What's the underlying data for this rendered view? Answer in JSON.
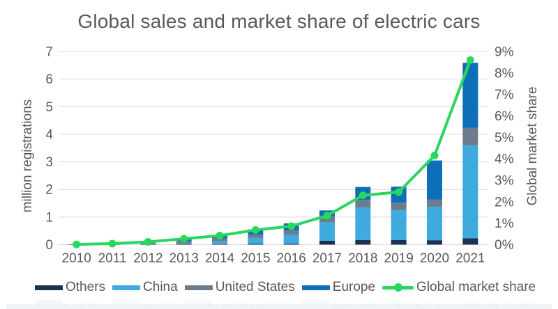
{
  "title": "Global sales and market share of electric cars",
  "chart_data": {
    "type": "combo",
    "x": [
      "2010",
      "2011",
      "2012",
      "2013",
      "2014",
      "2015",
      "2016",
      "2017",
      "2018",
      "2019",
      "2020",
      "2021"
    ],
    "bar_series": [
      {
        "name": "Others",
        "color": "#1d3154",
        "values": [
          0.005,
          0.01,
          0.01,
          0.02,
          0.02,
          0.03,
          0.03,
          0.14,
          0.17,
          0.17,
          0.16,
          0.23
        ]
      },
      {
        "name": "China",
        "color": "#3eaadd",
        "values": [
          0.0,
          0.01,
          0.02,
          0.03,
          0.1,
          0.22,
          0.33,
          0.67,
          1.18,
          1.08,
          1.21,
          3.37
        ]
      },
      {
        "name": "United States",
        "color": "#6d7c8b",
        "values": [
          0.0,
          0.02,
          0.05,
          0.08,
          0.12,
          0.11,
          0.15,
          0.22,
          0.27,
          0.27,
          0.26,
          0.63
        ]
      },
      {
        "name": "Europe",
        "color": "#0d6fb8",
        "values": [
          0.0,
          0.01,
          0.04,
          0.06,
          0.11,
          0.19,
          0.26,
          0.21,
          0.47,
          0.58,
          1.42,
          2.36
        ]
      }
    ],
    "line_series": {
      "name": "Global market share",
      "color": "#28d75f",
      "axis": "right",
      "values": [
        0.01,
        0.05,
        0.13,
        0.27,
        0.42,
        0.68,
        0.86,
        1.35,
        2.3,
        2.45,
        4.15,
        8.6
      ]
    },
    "left_axis": {
      "label": "million registrations",
      "min": 0,
      "max": 7,
      "ticks": [
        "0",
        "1",
        "2",
        "3",
        "4",
        "5",
        "6",
        "7"
      ]
    },
    "right_axis": {
      "label": "Global market share",
      "min": 0,
      "max": 9,
      "ticks": [
        "0%",
        "1%",
        "2%",
        "3%",
        "4%",
        "5%",
        "6%",
        "7%",
        "8%",
        "9%"
      ]
    },
    "grid": true,
    "legend_position": "bottom"
  },
  "colors": {
    "text": "#595959",
    "grid": "#d9d9d9",
    "background": "#ffffff"
  }
}
